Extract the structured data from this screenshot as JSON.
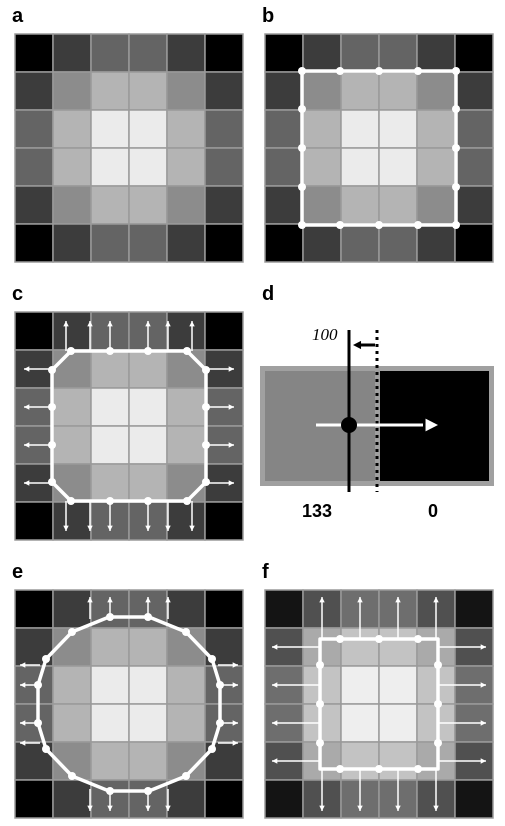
{
  "panels": {
    "a": {
      "label": "a"
    },
    "b": {
      "label": "b"
    },
    "c": {
      "label": "c"
    },
    "d": {
      "label": "d",
      "threshold_label": "100",
      "left_value": "133",
      "right_value": "0"
    },
    "e": {
      "label": "e"
    },
    "f": {
      "label": "f"
    }
  },
  "grid": {
    "rows": 6,
    "cols": 6,
    "intensities": [
      [
        0,
        60,
        100,
        100,
        60,
        0
      ],
      [
        60,
        140,
        180,
        180,
        140,
        60
      ],
      [
        100,
        180,
        235,
        235,
        180,
        100
      ],
      [
        100,
        180,
        235,
        235,
        180,
        100
      ],
      [
        60,
        140,
        180,
        180,
        140,
        60
      ],
      [
        0,
        60,
        100,
        100,
        60,
        0
      ]
    ]
  },
  "colors": {
    "contour": "#ffffff",
    "grid_line": "#9a9a9a",
    "arrow": "#ffffff",
    "panel_d_left": "#858585",
    "panel_d_right": "#000000",
    "panel_d_border": "#a0a0a0"
  }
}
